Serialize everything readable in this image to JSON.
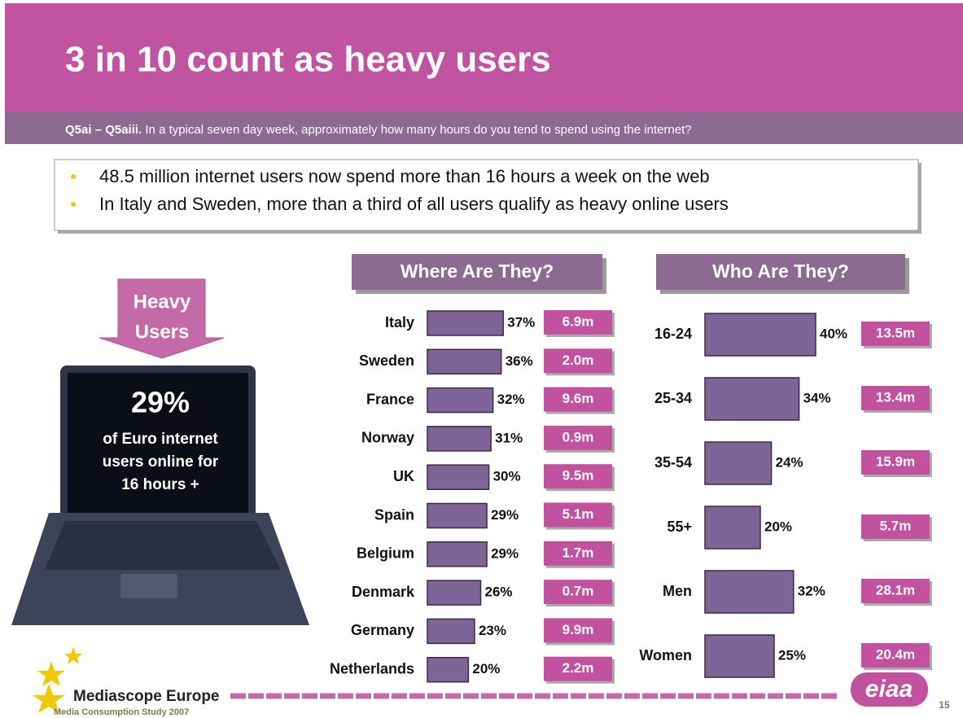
{
  "header": {
    "title": "3 in 10 count as heavy users",
    "question_code": "Q5ai – Q5aiii.",
    "question_text": "In a typical seven day week, approximately how many hours do you tend to spend using the internet?"
  },
  "bullets": [
    "48.5 million internet users now spend more than 16 hours a week on the web",
    "In Italy and Sweden, more than a third of all users qualify as heavy online users"
  ],
  "callout": {
    "lines": [
      "Heavy",
      "Users"
    ]
  },
  "laptop": {
    "headline": "29%",
    "lines": [
      "of Euro internet",
      "users online for",
      "16 hours +"
    ]
  },
  "chart_data": [
    {
      "type": "bar",
      "title": "Where Are They?",
      "categories": [
        "Italy",
        "Sweden",
        "France",
        "Norway",
        "UK",
        "Spain",
        "Belgium",
        "Denmark",
        "Germany",
        "Netherlands"
      ],
      "values": [
        37,
        36,
        32,
        31,
        30,
        29,
        29,
        26,
        23,
        20
      ],
      "value_labels": [
        "37%",
        "36%",
        "32%",
        "31%",
        "30%",
        "29%",
        "29%",
        "26%",
        "23%",
        "20%"
      ],
      "user_labels": [
        "6.9m",
        "2.0m",
        "9.6m",
        "0.9m",
        "9.5m",
        "5.1m",
        "1.7m",
        "0.7m",
        "9.9m",
        "2.2m"
      ],
      "color": "#7f6497",
      "label_color": "#c2519f"
    },
    {
      "type": "bar",
      "title": "Who Are They?",
      "categories": [
        "16-24",
        "25-34",
        "35-54",
        "55+",
        "Men",
        "Women"
      ],
      "values": [
        40,
        34,
        24,
        20,
        32,
        25
      ],
      "value_labels": [
        "40%",
        "34%",
        "24%",
        "20%",
        "32%",
        "25%"
      ],
      "user_labels": [
        "13.5m",
        "13.4m",
        "15.9m",
        "5.7m",
        "28.1m",
        "20.4m"
      ],
      "color": "#7f6497",
      "label_color": "#c2519f"
    }
  ],
  "footer": {
    "brand": "Mediascope Europe",
    "study": "Media Consumption Study 2007",
    "logo": "eiaa",
    "page": "15"
  }
}
